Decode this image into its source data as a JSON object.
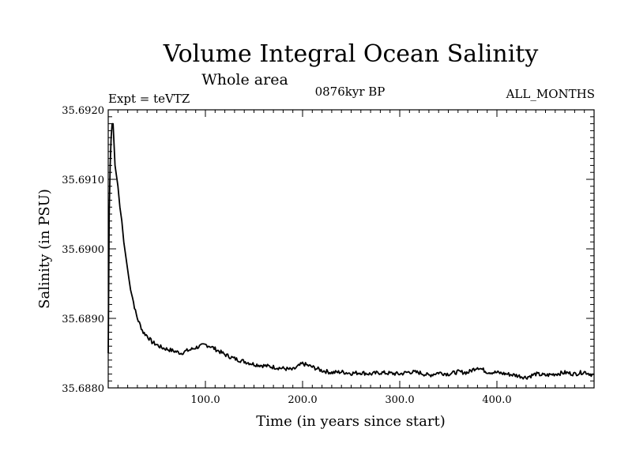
{
  "chart_data": {
    "type": "line",
    "title": "Volume Integral Ocean Salinity",
    "subtitle": "Whole area",
    "experiment": "Expt = teVTZ",
    "period": "0876kyr BP",
    "months": "ALL_MONTHS",
    "xlabel": "Time (in years since start)",
    "ylabel": "Salinity (in PSU)",
    "xlim": [
      0,
      500
    ],
    "ylim": [
      35.688,
      35.692
    ],
    "x_ticks": [
      100,
      200,
      300,
      400
    ],
    "x_tick_labels": [
      "100.0",
      "200.0",
      "300.0",
      "400.0"
    ],
    "y_ticks": [
      35.688,
      35.689,
      35.69,
      35.691,
      35.692
    ],
    "y_tick_labels": [
      "35.6880",
      "35.6890",
      "35.6900",
      "35.6910",
      "35.6920"
    ],
    "grid": false,
    "series": [
      {
        "name": "Salinity",
        "x": [
          0,
          1,
          2,
          3,
          4,
          5,
          6,
          7,
          8,
          10,
          12,
          14,
          16,
          18,
          20,
          22,
          25,
          28,
          30,
          33,
          36,
          40,
          45,
          50,
          55,
          60,
          65,
          70,
          75,
          80,
          85,
          90,
          95,
          100,
          105,
          110,
          115,
          120,
          130,
          140,
          150,
          160,
          170,
          180,
          190,
          200,
          210,
          220,
          230,
          240,
          250,
          260,
          270,
          280,
          290,
          300,
          310,
          320,
          330,
          340,
          350,
          360,
          370,
          380,
          390,
          400,
          410,
          420,
          430,
          440,
          450,
          460,
          470,
          480,
          490,
          500
        ],
        "y": [
          35.6885,
          35.6905,
          35.6912,
          35.6916,
          35.6918,
          35.6918,
          35.6915,
          35.6912,
          35.6911,
          35.6909,
          35.6906,
          35.6904,
          35.6901,
          35.6899,
          35.6897,
          35.6895,
          35.6893,
          35.6891,
          35.689,
          35.6889,
          35.6888,
          35.68875,
          35.68866,
          35.68862,
          35.68858,
          35.68856,
          35.68854,
          35.68852,
          35.6885,
          35.68853,
          35.68855,
          35.68858,
          35.6886,
          35.68862,
          35.6886,
          35.68856,
          35.68852,
          35.68848,
          35.68842,
          35.68838,
          35.68834,
          35.68832,
          35.6883,
          35.68828,
          35.68826,
          35.68835,
          35.6883,
          35.68825,
          35.68822,
          35.68823,
          35.68821,
          35.68822,
          35.6882,
          35.68822,
          35.68821,
          35.6882,
          35.68823,
          35.68822,
          35.68818,
          35.68822,
          35.6882,
          35.68823,
          35.68822,
          35.6883,
          35.68823,
          35.68822,
          35.6882,
          35.68818,
          35.68815,
          35.6882,
          35.68818,
          35.6882,
          35.68822,
          35.6882,
          35.68823,
          35.68818
        ]
      }
    ]
  }
}
